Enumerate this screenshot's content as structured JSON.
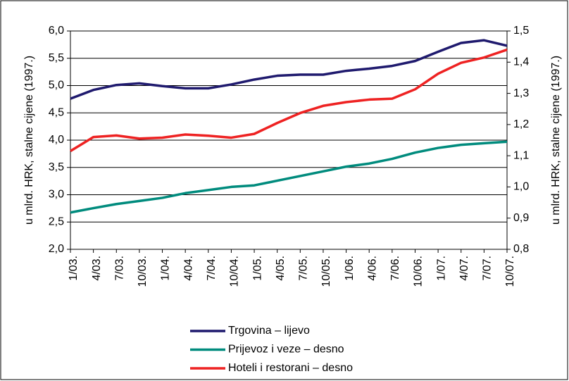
{
  "chart_data": {
    "type": "line",
    "categories": [
      "1/03.",
      "4/03.",
      "7/03.",
      "10/03.",
      "1/04.",
      "4/04.",
      "7/04.",
      "10/04.",
      "1/05.",
      "4/05.",
      "7/05.",
      "10/05.",
      "1/06.",
      "4/06.",
      "7/06.",
      "10/06.",
      "1/07.",
      "4/07.",
      "7/07.",
      "10/07."
    ],
    "ylabel": "u mlrd. HRK, stalne cijene (1997.)",
    "y2label": "u mlrd. HRK, stalne cijene (1997.)",
    "ylim": [
      2,
      6
    ],
    "yticks": [
      {
        "value": 2,
        "label": "2,0"
      },
      {
        "value": 2.5,
        "label": "2,5"
      },
      {
        "value": 3,
        "label": "3,0"
      },
      {
        "value": 3.5,
        "label": "3,5"
      },
      {
        "value": 4,
        "label": "4,0"
      },
      {
        "value": 4.5,
        "label": "4,5"
      },
      {
        "value": 5,
        "label": "5,0"
      },
      {
        "value": 5.5,
        "label": "5,5"
      },
      {
        "value": 6,
        "label": "6,0"
      }
    ],
    "y2lim": [
      0.8,
      1.5
    ],
    "y2ticks": [
      {
        "value": 0.8,
        "label": "0,8"
      },
      {
        "value": 0.9,
        "label": "0,9"
      },
      {
        "value": 1,
        "label": "1,0"
      },
      {
        "value": 1.1,
        "label": "1,1"
      },
      {
        "value": 1.2,
        "label": "1,2"
      },
      {
        "value": 1.3,
        "label": "1,3"
      },
      {
        "value": 1.4,
        "label": "1,4"
      },
      {
        "value": 1.5,
        "label": "1,5"
      }
    ],
    "grid": true,
    "series": [
      {
        "name": "Trgovina – lijevo",
        "color": "#1f1a6e",
        "axis": "y",
        "values": [
          4.76,
          4.92,
          5.01,
          5.04,
          4.99,
          4.95,
          4.95,
          5.02,
          5.11,
          5.18,
          5.2,
          5.2,
          5.27,
          5.31,
          5.36,
          5.45,
          5.62,
          5.78,
          5.83,
          5.73
        ]
      },
      {
        "name": "Prijevoz i veze – desno",
        "color": "#008b7d",
        "axis": "y2",
        "values": [
          0.918,
          0.932,
          0.945,
          0.955,
          0.965,
          0.98,
          0.99,
          1.0,
          1.005,
          1.02,
          1.035,
          1.05,
          1.065,
          1.075,
          1.09,
          1.11,
          1.125,
          1.135,
          1.14,
          1.145
        ]
      },
      {
        "name": "Hoteli i restorani – desno",
        "color": "#ee2222",
        "axis": "y2",
        "values": [
          1.115,
          1.16,
          1.165,
          1.155,
          1.158,
          1.168,
          1.164,
          1.158,
          1.17,
          1.205,
          1.237,
          1.26,
          1.272,
          1.28,
          1.283,
          1.313,
          1.363,
          1.398,
          1.415,
          1.44
        ]
      }
    ]
  }
}
